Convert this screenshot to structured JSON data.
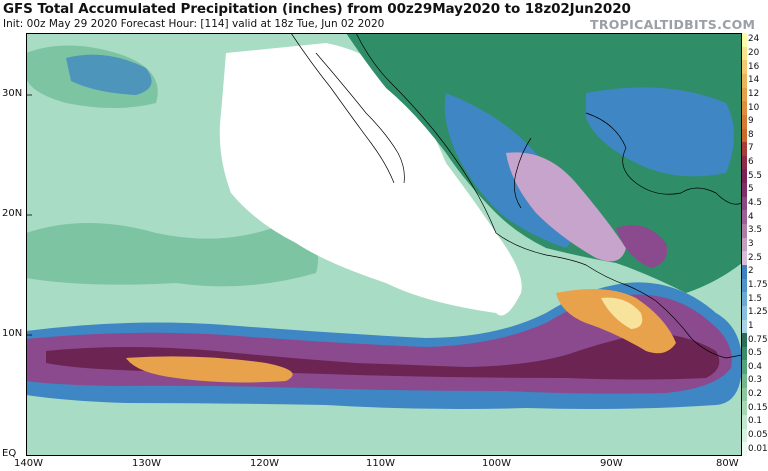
{
  "header": {
    "title": "GFS Total Accumulated Precipitation (inches) from 00z29May2020 to 18z02Jun2020",
    "subtitle": "Init: 00z May 29 2020   Forecast Hour: [114]   valid at 18z Tue, Jun 02 2020",
    "brand": "TROPICALTIDBITS.COM"
  },
  "axes": {
    "lat_labels": [
      "30N",
      "20N",
      "10N",
      "EQ"
    ],
    "lon_labels": [
      "140W",
      "130W",
      "120W",
      "110W",
      "100W",
      "90W",
      "80W"
    ]
  },
  "colorbar": {
    "levels": [
      "24",
      "20",
      "16",
      "14",
      "12",
      "10",
      "9",
      "8",
      "7",
      "6",
      "5.5",
      "5",
      "4.5",
      "4",
      "3.5",
      "3",
      "2.5",
      "2",
      "1.75",
      "1.5",
      "1.25",
      "1",
      "0.75",
      "0.5",
      "0.4",
      "0.3",
      "0.2",
      "0.15",
      "0.1",
      "0.05",
      "0.01"
    ],
    "colors": [
      "#fbfca8",
      "#f7e58e",
      "#f3c96f",
      "#ebb459",
      "#e7a04a",
      "#df8c3c",
      "#d67a33",
      "#c96a2d",
      "#a63d37",
      "#8f2a48",
      "#7a2158",
      "#7e2f6a",
      "#8a4883",
      "#9b6196",
      "#ad7ca9",
      "#c29ec0",
      "#d6bfd6",
      "#3e80c0",
      "#4f95cb",
      "#6aaad4",
      "#88bede",
      "#a8d3e6",
      "#2c6e58",
      "#3d8a66",
      "#55a179",
      "#74b78e",
      "#8cc7a0",
      "#a6d8b5",
      "#c3e8cd",
      "#d9f2e0",
      "#eefaf2"
    ]
  },
  "map": {
    "colors": {
      "ocean_low": "#a8dcc4",
      "dry": "#ffffff",
      "light": "#7cc4a2",
      "moderate": "#2f8e68",
      "blue": "#3f86c4",
      "light_purple": "#c7a4cc",
      "purple": "#8b4a8e",
      "dark_purple": "#6c2453",
      "orange": "#e9a24c",
      "yellow": "#f8e39c",
      "border": "#000000"
    }
  }
}
